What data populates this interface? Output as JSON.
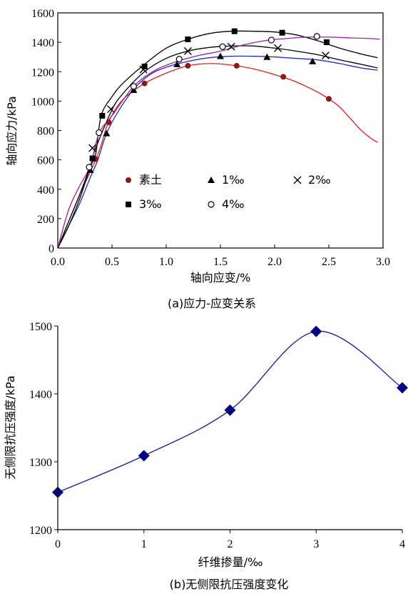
{
  "chart_data": [
    {
      "type": "line",
      "xlabel": "轴向应变/%",
      "ylabel": "轴向应力/kPa",
      "caption": "(a)应力-应变关系",
      "xlim": [
        0,
        3.0
      ],
      "ylim": [
        0,
        1600
      ],
      "xticks": [
        0.0,
        0.5,
        1.0,
        1.5,
        2.0,
        2.5,
        3.0
      ],
      "xtick_labels": [
        "0.0",
        "0.5",
        "1.0",
        "1.5",
        "2.0",
        "2.5",
        "3.0"
      ],
      "yticks": [
        0,
        200,
        400,
        600,
        800,
        1000,
        1200,
        1400,
        1600
      ],
      "ytick_labels": [
        "0",
        "200",
        "400",
        "600",
        "800",
        "1000",
        "1200",
        "1400",
        "1600"
      ],
      "legend_position": "inside-lower-middle",
      "series": [
        {
          "name": "素土",
          "color": "#e02020",
          "marker": "circle-filled",
          "marker_color": "#8b1a1a",
          "x": [
            0,
            0.1,
            0.2,
            0.3,
            0.35,
            0.4,
            0.47,
            0.6,
            0.8,
            1.0,
            1.2,
            1.4,
            1.6,
            1.8,
            2.0,
            2.2,
            2.4,
            2.5,
            2.6,
            2.7,
            2.8,
            2.9,
            2.95
          ],
          "y": [
            0,
            180,
            360,
            520,
            600,
            700,
            860,
            1010,
            1120,
            1190,
            1240,
            1255,
            1245,
            1220,
            1180,
            1130,
            1060,
            1015,
            960,
            880,
            800,
            740,
            720
          ],
          "marker_x": [
            0.35,
            0.47,
            0.8,
            1.2,
            1.65,
            2.08,
            2.5
          ],
          "marker_y": [
            605,
            855,
            1120,
            1240,
            1240,
            1165,
            1015
          ]
        },
        {
          "name": "1‰",
          "color": "#2030c0",
          "marker": "triangle-filled",
          "marker_color": "#000000",
          "x": [
            0,
            0.1,
            0.2,
            0.3,
            0.37,
            0.45,
            0.55,
            0.7,
            0.85,
            1.0,
            1.2,
            1.4,
            1.6,
            1.8,
            2.0,
            2.2,
            2.4,
            2.6,
            2.8,
            2.95
          ],
          "y": [
            0,
            150,
            300,
            480,
            600,
            780,
            920,
            1080,
            1180,
            1230,
            1270,
            1295,
            1305,
            1305,
            1300,
            1290,
            1280,
            1255,
            1225,
            1210
          ],
          "marker_x": [
            0.3,
            0.45,
            0.7,
            1.1,
            1.5,
            1.93,
            2.35
          ],
          "marker_y": [
            530,
            780,
            1075,
            1250,
            1305,
            1300,
            1270
          ]
        },
        {
          "name": "2‰",
          "color": "#000000",
          "marker": "x",
          "marker_color": "#000000",
          "x": [
            0,
            0.1,
            0.2,
            0.3,
            0.35,
            0.5,
            0.6,
            0.8,
            1.0,
            1.2,
            1.4,
            1.6,
            1.8,
            2.0,
            2.2,
            2.4,
            2.6,
            2.8,
            2.95
          ],
          "y": [
            0,
            180,
            360,
            560,
            680,
            940,
            1050,
            1200,
            1290,
            1340,
            1365,
            1375,
            1375,
            1360,
            1340,
            1315,
            1280,
            1250,
            1225
          ],
          "marker_x": [
            0.32,
            0.49,
            0.79,
            1.2,
            1.6,
            2.03,
            2.47
          ],
          "marker_y": [
            680,
            945,
            1215,
            1340,
            1370,
            1360,
            1310
          ]
        },
        {
          "name": "3‰",
          "color": "#000000",
          "marker": "square-filled",
          "marker_color": "#000000",
          "x": [
            0,
            0.1,
            0.2,
            0.3,
            0.35,
            0.4,
            0.5,
            0.6,
            0.8,
            1.0,
            1.2,
            1.4,
            1.6,
            1.8,
            2.0,
            2.2,
            2.4,
            2.6,
            2.8,
            2.95
          ],
          "y": [
            0,
            150,
            330,
            550,
            640,
            900,
            1030,
            1120,
            1250,
            1360,
            1420,
            1460,
            1475,
            1475,
            1470,
            1450,
            1410,
            1360,
            1320,
            1295
          ],
          "marker_x": [
            0.32,
            0.41,
            0.8,
            1.2,
            1.63,
            2.07,
            2.48
          ],
          "marker_y": [
            610,
            900,
            1235,
            1420,
            1475,
            1465,
            1400
          ]
        },
        {
          "name": "4‰",
          "color": "#a020a0",
          "marker": "circle-open",
          "marker_color": "#000000",
          "x": [
            0,
            0.1,
            0.2,
            0.3,
            0.38,
            0.5,
            0.7,
            0.9,
            1.1,
            1.3,
            1.5,
            1.7,
            1.9,
            2.1,
            2.3,
            2.5,
            2.7,
            2.9,
            2.97
          ],
          "y": [
            0,
            260,
            420,
            560,
            780,
            900,
            1100,
            1210,
            1270,
            1310,
            1340,
            1380,
            1410,
            1425,
            1435,
            1435,
            1430,
            1425,
            1420
          ],
          "marker_x": [
            0.29,
            0.38,
            0.7,
            1.12,
            1.52,
            1.97,
            2.39
          ],
          "marker_y": [
            550,
            785,
            1100,
            1285,
            1370,
            1415,
            1440
          ]
        }
      ]
    },
    {
      "type": "line",
      "xlabel": "纤维掺量/‰",
      "ylabel": "无侧限抗压强度/kPa",
      "caption": "(b)无侧限抗压强度变化",
      "xlim": [
        0,
        4
      ],
      "ylim": [
        1200,
        1500
      ],
      "xticks": [
        0,
        1,
        2,
        3,
        4
      ],
      "xtick_labels": [
        "0",
        "1",
        "2",
        "3",
        "4"
      ],
      "yticks": [
        1200,
        1300,
        1400,
        1500
      ],
      "ytick_labels": [
        "1200",
        "1300",
        "1400",
        "1500"
      ],
      "series": [
        {
          "color": "#1a1a9a",
          "marker": "diamond-filled",
          "marker_color": "#000080",
          "x": [
            0,
            1,
            2,
            3,
            4
          ],
          "y": [
            1255,
            1309,
            1376,
            1492,
            1409
          ]
        }
      ]
    }
  ]
}
